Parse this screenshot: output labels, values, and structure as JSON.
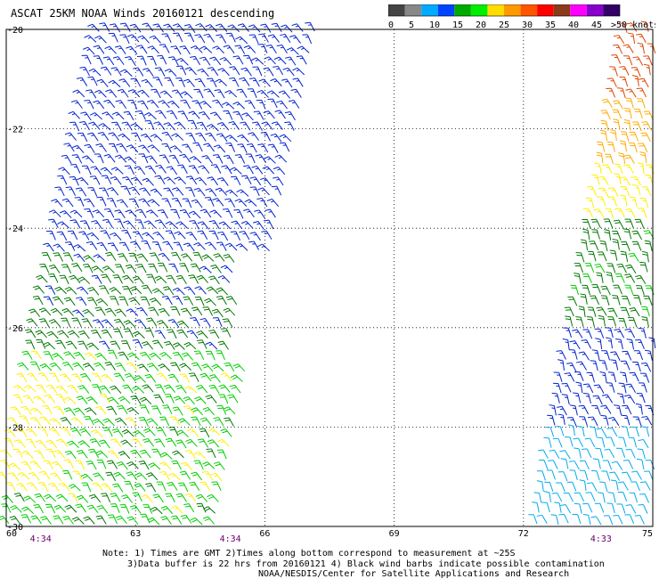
{
  "title": "ASCAT 25KM NOAA Winds 20160121 descending",
  "colorbar": {
    "ticks": [
      "0",
      "5",
      "10",
      "15",
      "20",
      "25",
      "30",
      "35",
      "40",
      "45",
      ">50 knots"
    ],
    "colors": [
      "#444444",
      "#888888",
      "#00aaff",
      "#0044ff",
      "#00aa00",
      "#00ee00",
      "#ffdd00",
      "#ff9900",
      "#ff5500",
      "#ff0000",
      "#8b3a1a",
      "#ff00ff",
      "#8800cc",
      "#330066"
    ]
  },
  "time_labels": [
    "4:34",
    "4:34",
    "4:33"
  ],
  "notes": [
    "Note: 1) Times are GMT 2)Times along bottom correspond to measurement at ~25S",
    "3)Data buffer is 22 hrs from 20160121 4) Black wind barbs indicate possible contamination",
    "NOAA/NESDIS/Center for Satellite Applications and Research"
  ],
  "chart_data": {
    "type": "scatter",
    "title": "ASCAT 25KM NOAA Winds 20160121 descending",
    "xlabel": "",
    "ylabel": "",
    "x_ticks": [
      "60",
      "63",
      "66",
      "69",
      "72",
      "75"
    ],
    "y_ticks": [
      "-20",
      "-22",
      "-24",
      "-26",
      "-28",
      "-30"
    ],
    "xlim": [
      60,
      75
    ],
    "ylim": [
      -30,
      -20
    ],
    "grid": true,
    "units": "knots",
    "swaths": [
      {
        "name": "",
        "time": "4:34",
        "regions": [
          {
            "lat_range": [
              -24.6,
              -20
            ],
            "speed_knots": 12
          },
          {
            "lat_range": [
              -26.5,
              -24.6
            ],
            "speed_knots": 16
          },
          {
            "lat_range": [
              -30,
              -26.5
            ],
            "speed_knots": 19
          },
          {
            "lat_range": [
              -29.5,
              -27.0
            ],
            "lon_range": [
              60.0,
              61.5
            ],
            "speed_knots": 22
          }
        ]
      },
      {
        "name": "",
        "time": "4:33",
        "regions": [
          {
            "lat_range": [
              -21.5,
              -20
            ],
            "speed_knots": 32
          },
          {
            "lat_range": [
              -22.8,
              -21.5
            ],
            "speed_knots": 28
          },
          {
            "lat_range": [
              -23.8,
              -22.8
            ],
            "speed_knots": 23
          },
          {
            "lat_range": [
              -26.2,
              -23.8
            ],
            "speed_knots": 17
          },
          {
            "lat_range": [
              -28.0,
              -26.2
            ],
            "speed_knots": 12
          },
          {
            "lat_range": [
              -30,
              -28.0
            ],
            "speed_knots": 8
          }
        ]
      }
    ]
  }
}
